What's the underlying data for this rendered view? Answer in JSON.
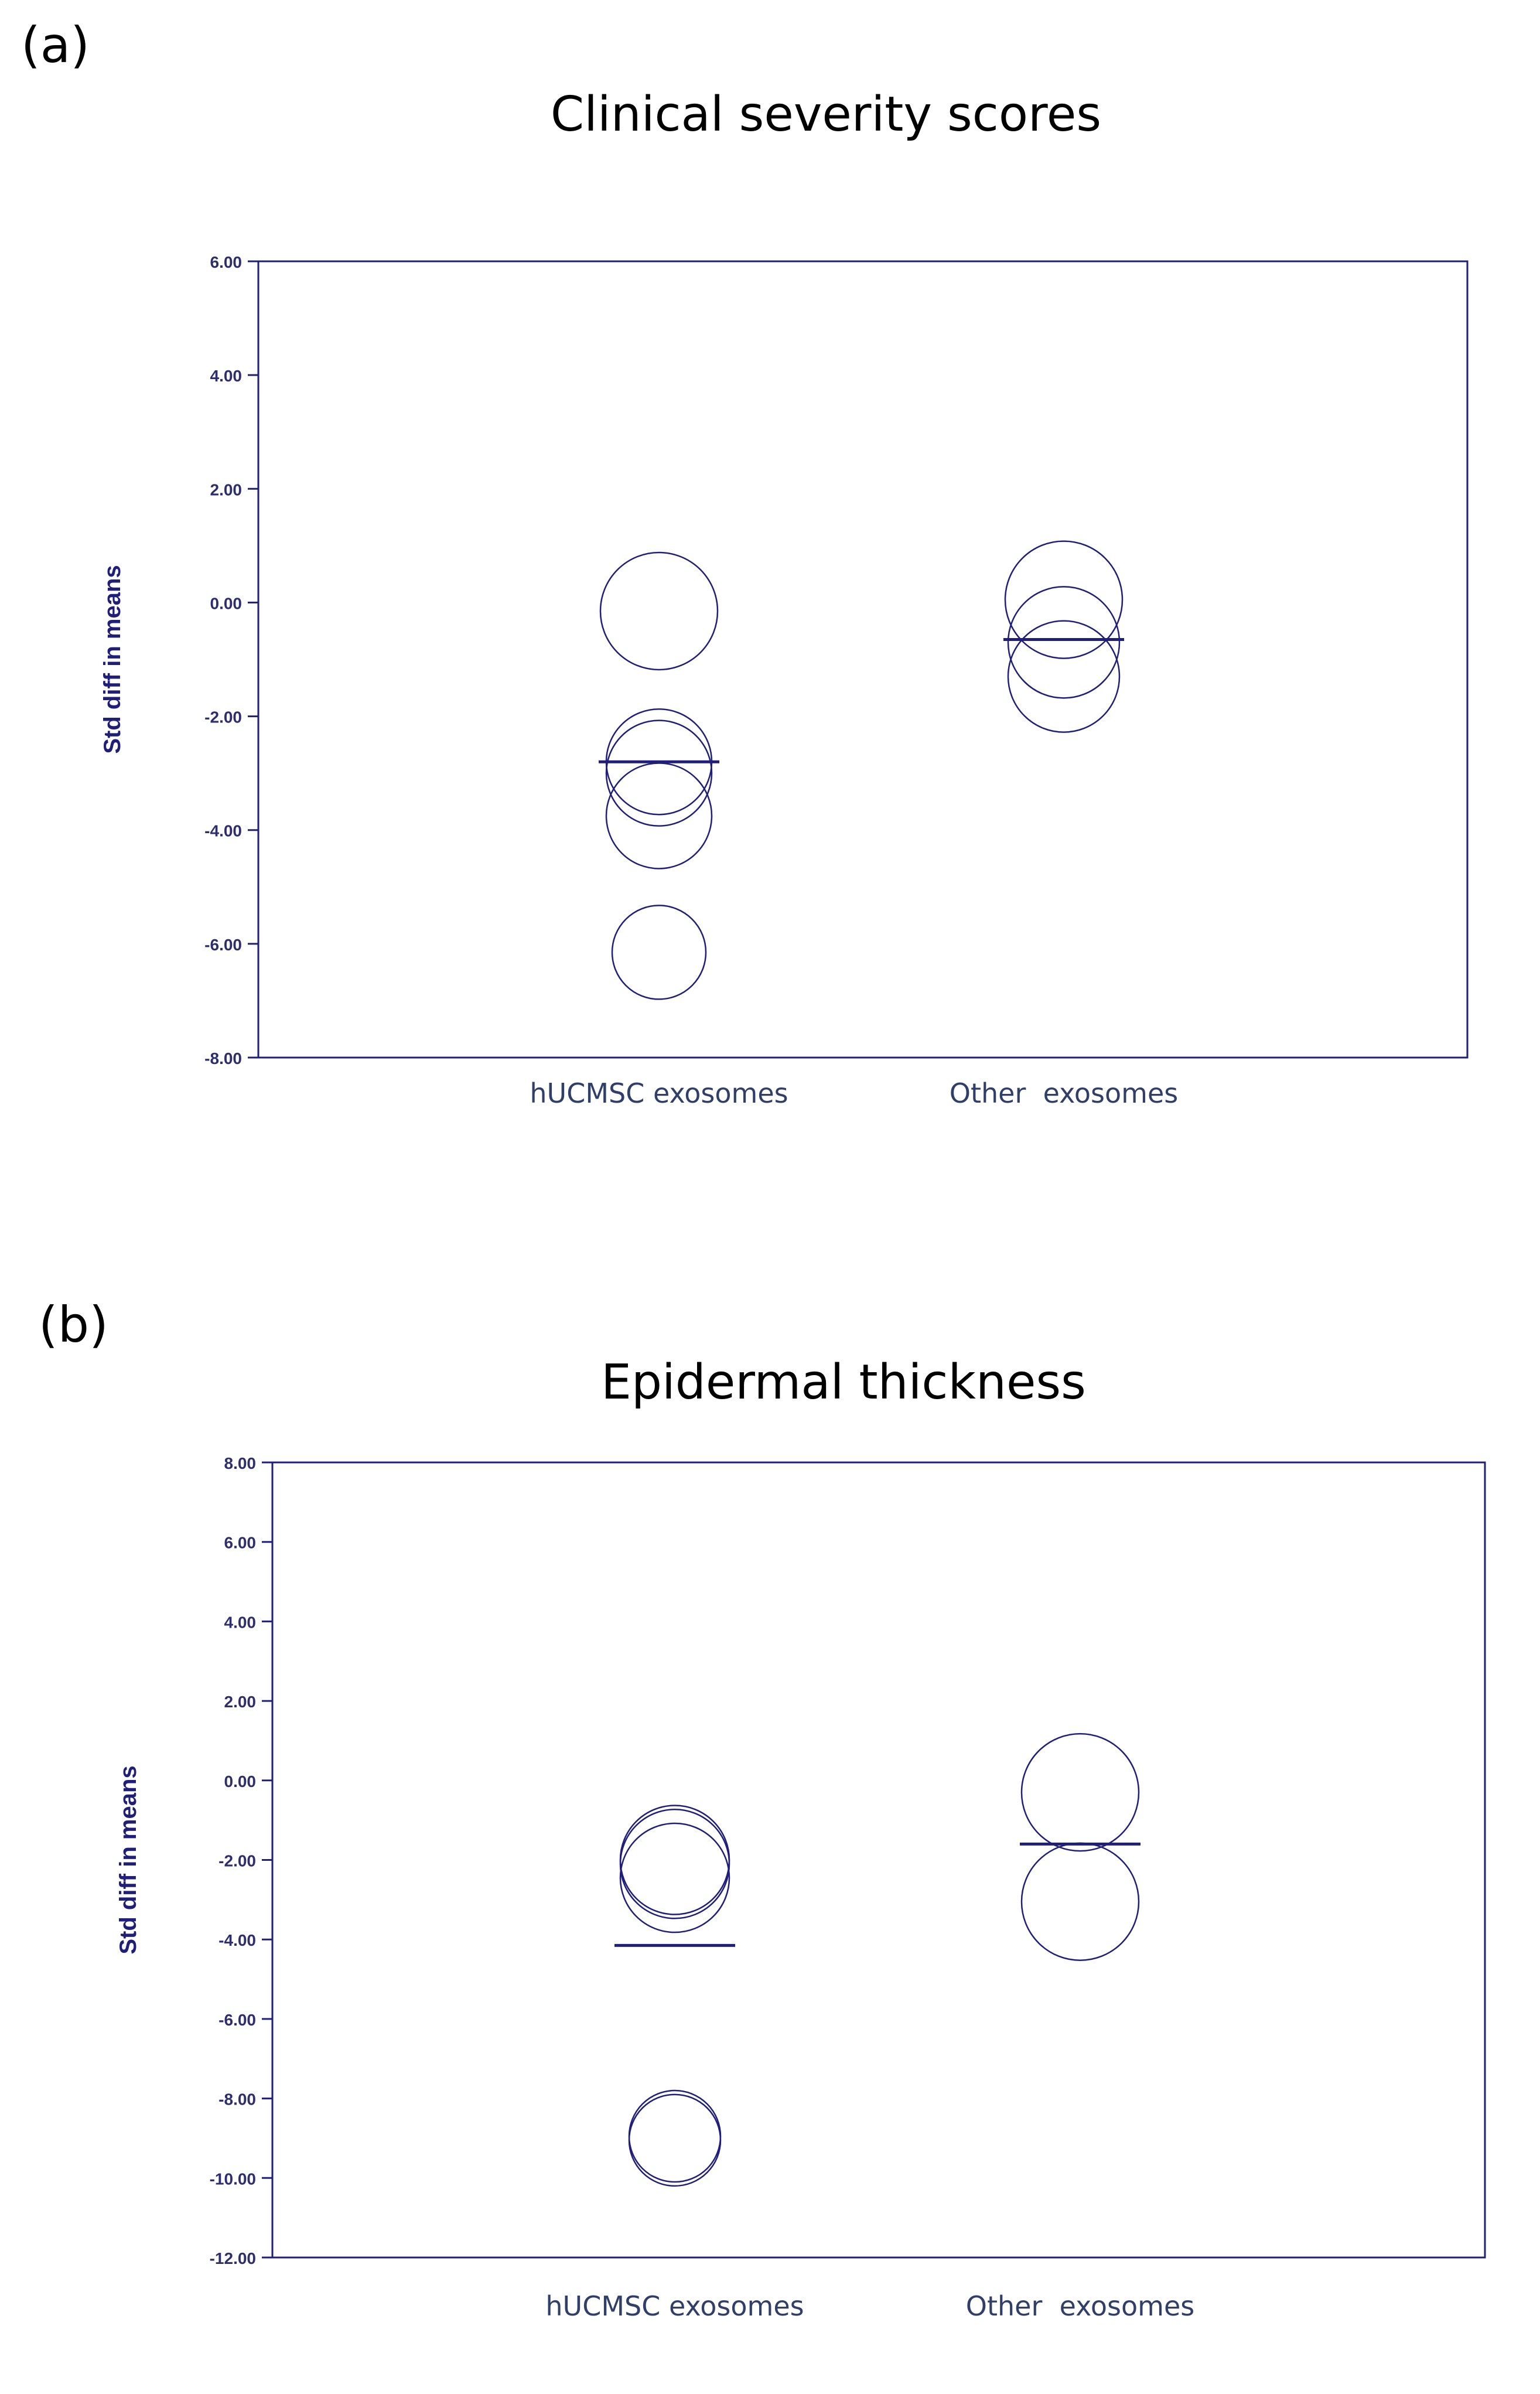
{
  "colors": {
    "navy": "#1f1f7a",
    "text": "#000000",
    "tick_text": "#2e2e6e",
    "category_text": "#2f3f6a"
  },
  "chart_data": [
    {
      "panel_label": "(a)",
      "type": "scatter",
      "title": "Clinical severity scores",
      "ylabel": "Std diff in means",
      "xlabel": "",
      "grid": false,
      "categories": [
        "hUCMSC exosomes",
        "Other  exosomes"
      ],
      "ylim": [
        -8,
        6
      ],
      "yticks": [
        6,
        4,
        2,
        0,
        -2,
        -4,
        -6,
        -8
      ],
      "ytick_labels": [
        "6.00",
        "4.00",
        "2.00",
        "0.00",
        "-2.00",
        "-4.00",
        "-6.00",
        "-8.00"
      ],
      "series": [
        {
          "name": "hUCMSC exosomes",
          "study_effects": [
            -0.15,
            -2.8,
            -3.0,
            -3.75,
            -6.15
          ],
          "pooled_effect": -2.8
        },
        {
          "name": "Other  exosomes",
          "study_effects": [
            0.05,
            -0.7,
            -1.3
          ],
          "pooled_effect": -0.65
        }
      ]
    },
    {
      "panel_label": "(b)",
      "type": "scatter",
      "title": "Epidermal thickness",
      "ylabel": "Std diff in means",
      "xlabel": "",
      "grid": false,
      "categories": [
        "hUCMSC exosomes",
        "Other  exosomes"
      ],
      "ylim": [
        -12,
        8
      ],
      "yticks": [
        8,
        6,
        4,
        2,
        0,
        -2,
        -4,
        -6,
        -8,
        -10,
        -12
      ],
      "ytick_labels": [
        "8.00",
        "6.00",
        "4.00",
        "2.00",
        "0.00",
        "-2.00",
        "-4.00",
        "-6.00",
        "-8.00",
        "-10.00",
        "-12.00"
      ],
      "series": [
        {
          "name": "hUCMSC exosomes",
          "study_effects": [
            -2.0,
            -2.1,
            -2.45,
            -8.95,
            -9.05
          ],
          "pooled_effect": -4.15
        },
        {
          "name": "Other  exosomes",
          "study_effects": [
            -0.3,
            -3.05
          ],
          "pooled_effect": -1.6
        }
      ]
    }
  ]
}
